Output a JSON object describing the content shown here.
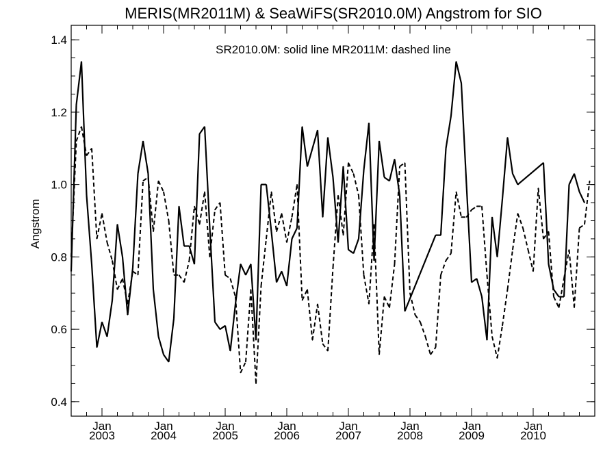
{
  "chart_data": {
    "type": "line",
    "title": "MERIS(MR2011M) & SeaWiFS(SR2010.0M)  Angstrom for SIO",
    "annotation": "SR2010.0M: solid line   MR2011M: dashed line",
    "ylabel": "Angstrom",
    "xlabel": "",
    "ylim": [
      0.36,
      1.44
    ],
    "yticks": [
      "0.4",
      "0.6",
      "0.8",
      "1.0",
      "1.2",
      "1.4"
    ],
    "xlim_months": [
      0,
      100
    ],
    "x_start": "2002-07",
    "x_axis_note": "x values are month indices; 0 = Jul 2002, 6 = Jan 2003, ..., 96 = Jan 2010",
    "xticks": [
      {
        "month": 6,
        "label": "Jan",
        "year": "2003"
      },
      {
        "month": 18,
        "label": "Jan",
        "year": "2004"
      },
      {
        "month": 30,
        "label": "Jan",
        "year": "2005"
      },
      {
        "month": 42,
        "label": "Jan",
        "year": "2006"
      },
      {
        "month": 54,
        "label": "Jan",
        "year": "2007"
      },
      {
        "month": 66,
        "label": "Jan",
        "year": "2008"
      },
      {
        "month": 78,
        "label": "Jan",
        "year": "2009"
      },
      {
        "month": 90,
        "label": "Jan",
        "year": "2010"
      }
    ],
    "series": [
      {
        "name": "SR2010.0M",
        "style": "solid",
        "color": "#000000",
        "points": [
          [
            0,
            0.76
          ],
          [
            1,
            1.22
          ],
          [
            2,
            1.34
          ],
          [
            3,
            0.97
          ],
          [
            4,
            0.78
          ],
          [
            5,
            0.55
          ],
          [
            6,
            0.62
          ],
          [
            7,
            0.58
          ],
          [
            8,
            0.68
          ],
          [
            9,
            0.89
          ],
          [
            10,
            0.8
          ],
          [
            11,
            0.64
          ],
          [
            12,
            0.77
          ],
          [
            13,
            1.03
          ],
          [
            14,
            1.12
          ],
          [
            15,
            1.03
          ],
          [
            16,
            0.71
          ],
          [
            17,
            0.58
          ],
          [
            18,
            0.53
          ],
          [
            19,
            0.51
          ],
          [
            20,
            0.63
          ],
          [
            21,
            0.94
          ],
          [
            22,
            0.83
          ],
          [
            23,
            0.83
          ],
          [
            24,
            0.78
          ],
          [
            25,
            1.14
          ],
          [
            26,
            1.16
          ],
          [
            27,
            0.88
          ],
          [
            28,
            0.62
          ],
          [
            29,
            0.6
          ],
          [
            30,
            0.61
          ],
          [
            31,
            0.54
          ],
          [
            32,
            0.67
          ],
          [
            33,
            0.78
          ],
          [
            34,
            0.75
          ],
          [
            35,
            0.78
          ],
          [
            36,
            0.57
          ],
          [
            37,
            1.0
          ],
          [
            38,
            1.0
          ],
          [
            39,
            0.87
          ],
          [
            40,
            0.73
          ],
          [
            41,
            0.76
          ],
          [
            42,
            0.72
          ],
          [
            43,
            0.85
          ],
          [
            44,
            0.88
          ],
          [
            45,
            1.16
          ],
          [
            46,
            1.05
          ],
          [
            47,
            1.1
          ],
          [
            48,
            1.15
          ],
          [
            49,
            0.91
          ],
          [
            50,
            1.13
          ],
          [
            51,
            1.02
          ],
          [
            52,
            0.84
          ],
          [
            53,
            1.05
          ],
          [
            54,
            0.82
          ],
          [
            55,
            0.81
          ],
          [
            56,
            0.85
          ],
          [
            57,
            1.04
          ],
          [
            58,
            1.17
          ],
          [
            59,
            0.79
          ],
          [
            60,
            1.12
          ],
          [
            61,
            1.02
          ],
          [
            62,
            1.01
          ],
          [
            63,
            1.07
          ],
          [
            64,
            0.97
          ],
          [
            65,
            0.65
          ],
          [
            71,
            0.86
          ],
          [
            72,
            0.86
          ],
          [
            73,
            1.1
          ],
          [
            74,
            1.19
          ],
          [
            75,
            1.34
          ],
          [
            76,
            1.28
          ],
          [
            77,
            1.0
          ],
          [
            78,
            0.73
          ],
          [
            79,
            0.74
          ],
          [
            80,
            0.69
          ],
          [
            81,
            0.57
          ],
          [
            82,
            0.91
          ],
          [
            83,
            0.8
          ],
          [
            84,
            0.96
          ],
          [
            85,
            1.13
          ],
          [
            86,
            1.03
          ],
          [
            87,
            1.0
          ],
          [
            92,
            1.06
          ],
          [
            93,
            0.78
          ],
          [
            94,
            0.71
          ],
          [
            95,
            0.69
          ],
          [
            96,
            0.69
          ],
          [
            97,
            1.0
          ],
          [
            98,
            1.03
          ],
          [
            99,
            0.98
          ],
          [
            100,
            0.95
          ]
        ]
      },
      {
        "name": "MR2011M",
        "style": "dashed",
        "color": "#000000",
        "points": [
          [
            0,
            0.8
          ],
          [
            1,
            1.12
          ],
          [
            2,
            1.16
          ],
          [
            3,
            1.08
          ],
          [
            4,
            1.1
          ],
          [
            5,
            0.85
          ],
          [
            6,
            0.92
          ],
          [
            7,
            0.84
          ],
          [
            8,
            0.79
          ],
          [
            9,
            0.71
          ],
          [
            10,
            0.74
          ],
          [
            11,
            0.67
          ],
          [
            12,
            0.76
          ],
          [
            13,
            0.75
          ],
          [
            14,
            1.01
          ],
          [
            15,
            1.02
          ],
          [
            16,
            0.87
          ],
          [
            17,
            1.01
          ],
          [
            18,
            0.98
          ],
          [
            19,
            0.9
          ],
          [
            20,
            0.75
          ],
          [
            21,
            0.75
          ],
          [
            22,
            0.73
          ],
          [
            23,
            0.79
          ],
          [
            24,
            0.94
          ],
          [
            25,
            0.89
          ],
          [
            26,
            0.98
          ],
          [
            27,
            0.8
          ],
          [
            28,
            0.93
          ],
          [
            29,
            0.95
          ],
          [
            30,
            0.75
          ],
          [
            31,
            0.74
          ],
          [
            32,
            0.69
          ],
          [
            33,
            0.48
          ],
          [
            34,
            0.51
          ],
          [
            35,
            0.71
          ],
          [
            36,
            0.45
          ],
          [
            37,
            0.72
          ],
          [
            38,
            0.85
          ],
          [
            39,
            0.98
          ],
          [
            40,
            0.87
          ],
          [
            41,
            0.92
          ],
          [
            42,
            0.84
          ],
          [
            43,
            0.91
          ],
          [
            44,
            1.0
          ],
          [
            45,
            0.68
          ],
          [
            46,
            0.71
          ],
          [
            47,
            0.57
          ],
          [
            48,
            0.67
          ],
          [
            49,
            0.56
          ],
          [
            50,
            0.54
          ],
          [
            51,
            0.77
          ],
          [
            52,
            0.97
          ],
          [
            53,
            0.86
          ],
          [
            54,
            1.06
          ],
          [
            55,
            1.03
          ],
          [
            56,
            0.97
          ],
          [
            57,
            0.75
          ],
          [
            58,
            0.67
          ],
          [
            59,
            0.89
          ],
          [
            60,
            0.53
          ],
          [
            61,
            0.69
          ],
          [
            62,
            0.66
          ],
          [
            63,
            0.78
          ],
          [
            64,
            1.05
          ],
          [
            65,
            1.06
          ],
          [
            66,
            0.7
          ],
          [
            67,
            0.64
          ],
          [
            68,
            0.62
          ],
          [
            69,
            0.58
          ],
          [
            70,
            0.53
          ],
          [
            71,
            0.55
          ],
          [
            72,
            0.75
          ],
          [
            73,
            0.79
          ],
          [
            74,
            0.81
          ],
          [
            75,
            0.98
          ],
          [
            76,
            0.91
          ],
          [
            77,
            0.91
          ],
          [
            78,
            0.93
          ],
          [
            79,
            0.94
          ],
          [
            80,
            0.94
          ],
          [
            81,
            0.75
          ],
          [
            82,
            0.58
          ],
          [
            83,
            0.52
          ],
          [
            84,
            0.61
          ],
          [
            85,
            0.71
          ],
          [
            86,
            0.82
          ],
          [
            87,
            0.92
          ],
          [
            88,
            0.88
          ],
          [
            89,
            0.82
          ],
          [
            90,
            0.76
          ],
          [
            91,
            0.99
          ],
          [
            92,
            0.85
          ],
          [
            93,
            0.87
          ],
          [
            94,
            0.69
          ],
          [
            95,
            0.66
          ],
          [
            96,
            0.74
          ],
          [
            97,
            0.82
          ],
          [
            98,
            0.66
          ],
          [
            99,
            0.88
          ],
          [
            100,
            0.89
          ],
          [
            101,
            1.01
          ]
        ]
      }
    ]
  }
}
